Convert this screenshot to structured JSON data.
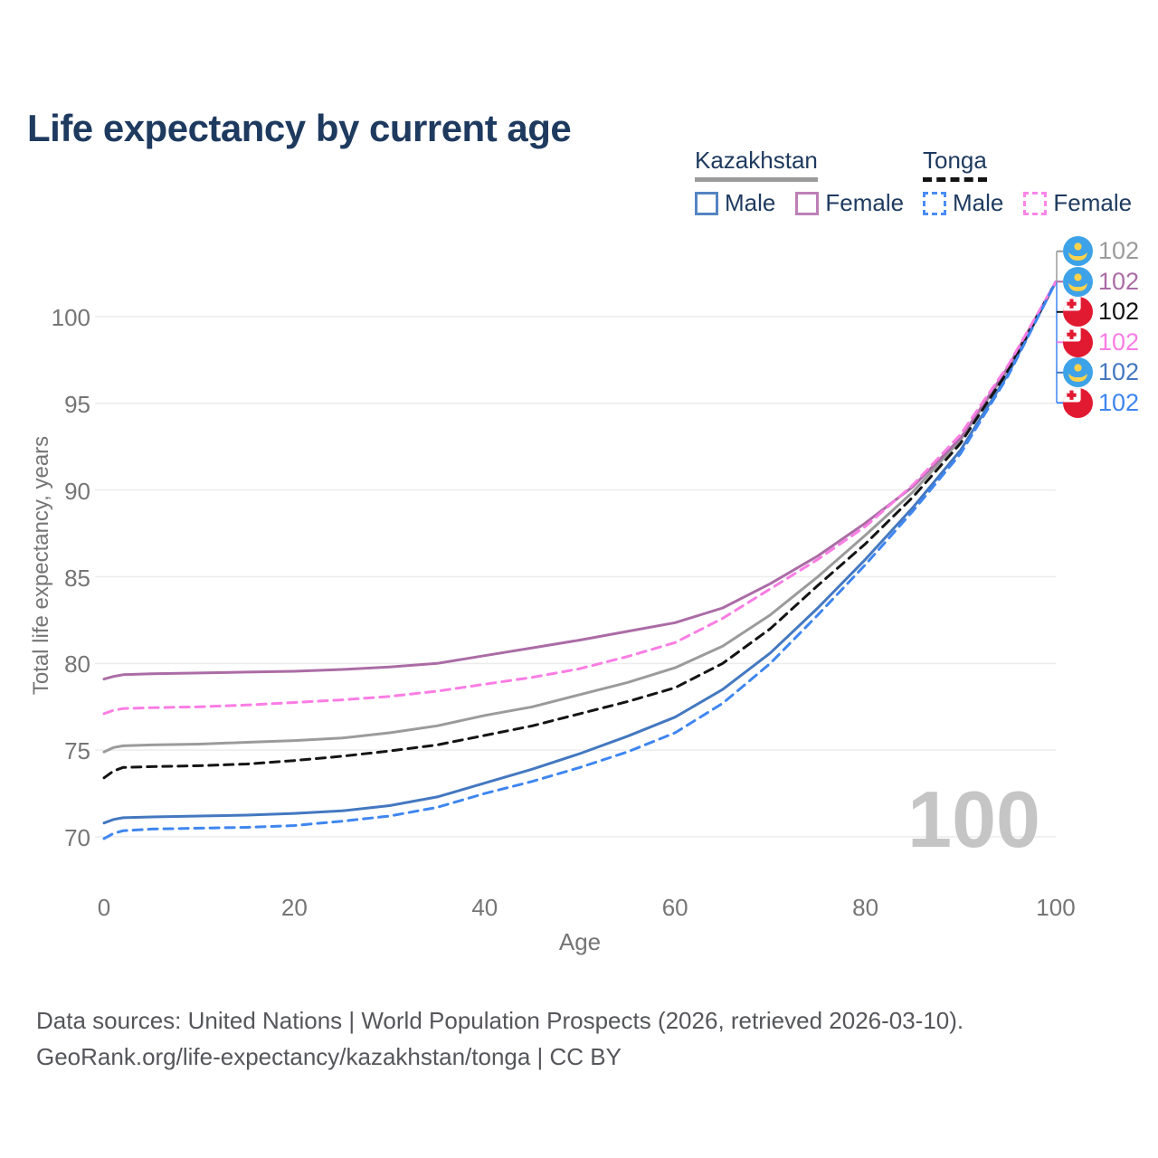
{
  "title": "Life expectancy by current age",
  "legend": {
    "groups": [
      {
        "name": "Kazakhstan",
        "line_style": "solid",
        "underline_color": "#9b9b9b",
        "items": [
          {
            "label": "Male",
            "swatch_color": "#5585c2"
          },
          {
            "label": "Female",
            "swatch_color": "#bd7fb7"
          }
        ]
      },
      {
        "name": "Tonga",
        "line_style": "dashed",
        "underline_color": "#141414",
        "items": [
          {
            "label": "Male",
            "swatch_color": "#4a8cf7"
          },
          {
            "label": "Female",
            "swatch_color": "#fb85e9"
          }
        ]
      }
    ]
  },
  "chart_data": {
    "type": "line",
    "title": "Life expectancy by current age",
    "xlabel": "Age",
    "ylabel": "Total life expectancy, years",
    "xlim": [
      0,
      100
    ],
    "ylim": [
      68.5,
      103
    ],
    "xticks": [
      0,
      20,
      40,
      60,
      80,
      100
    ],
    "yticks": [
      70,
      75,
      80,
      85,
      90,
      95,
      100
    ],
    "grid": "horizontal",
    "legend_position": "top-right",
    "x": [
      0,
      1,
      2,
      5,
      10,
      15,
      20,
      25,
      30,
      35,
      40,
      45,
      50,
      55,
      60,
      65,
      70,
      75,
      80,
      85,
      90,
      95,
      100
    ],
    "series": [
      {
        "name": "Kazakhstan All",
        "country": "Kazakhstan",
        "sex": "all",
        "color": "#9b9b9b",
        "dash": "solid",
        "values": [
          74.9,
          75.15,
          75.25,
          75.3,
          75.35,
          75.45,
          75.55,
          75.7,
          76.0,
          76.4,
          77.0,
          77.5,
          78.2,
          78.9,
          79.75,
          81.0,
          82.8,
          85.0,
          87.4,
          89.9,
          92.9,
          97.0,
          102
        ]
      },
      {
        "name": "Kazakhstan Female",
        "country": "Kazakhstan",
        "sex": "female",
        "color": "#ab6ca6",
        "dash": "solid",
        "values": [
          79.1,
          79.25,
          79.35,
          79.4,
          79.45,
          79.5,
          79.55,
          79.65,
          79.8,
          80.0,
          80.45,
          80.9,
          81.35,
          81.85,
          82.35,
          83.2,
          84.6,
          86.2,
          88.1,
          90.2,
          93.0,
          97.1,
          102
        ]
      },
      {
        "name": "Kazakhstan Male",
        "country": "Kazakhstan",
        "sex": "male",
        "color": "#4478c0",
        "dash": "solid",
        "values": [
          70.8,
          71.0,
          71.1,
          71.15,
          71.2,
          71.25,
          71.35,
          71.5,
          71.8,
          72.3,
          73.1,
          73.9,
          74.8,
          75.8,
          76.9,
          78.5,
          80.6,
          83.2,
          86.0,
          89.0,
          92.3,
          96.7,
          102
        ]
      },
      {
        "name": "Tonga All",
        "country": "Tonga",
        "sex": "all",
        "color": "#141414",
        "dash": "dashed",
        "values": [
          73.4,
          73.8,
          74.0,
          74.05,
          74.1,
          74.2,
          74.4,
          74.65,
          74.95,
          75.3,
          75.85,
          76.4,
          77.1,
          77.8,
          78.6,
          80.0,
          82.0,
          84.5,
          86.9,
          89.6,
          92.7,
          96.9,
          102
        ]
      },
      {
        "name": "Tonga Female",
        "country": "Tonga",
        "sex": "female",
        "color": "#fa7de4",
        "dash": "dashed",
        "values": [
          77.1,
          77.3,
          77.4,
          77.45,
          77.5,
          77.6,
          77.75,
          77.9,
          78.1,
          78.4,
          78.8,
          79.2,
          79.7,
          80.4,
          81.2,
          82.6,
          84.3,
          86.0,
          87.9,
          90.3,
          93.2,
          97.2,
          102
        ]
      },
      {
        "name": "Tonga Male",
        "country": "Tonga",
        "sex": "male",
        "color": "#3f86f0",
        "dash": "dashed",
        "values": [
          69.9,
          70.2,
          70.35,
          70.45,
          70.5,
          70.55,
          70.65,
          70.9,
          71.2,
          71.7,
          72.5,
          73.2,
          74.0,
          74.9,
          76.0,
          77.7,
          80.0,
          82.8,
          85.7,
          88.8,
          92.1,
          96.6,
          102
        ]
      }
    ]
  },
  "right_labels": [
    {
      "country": "Kazakhstan",
      "series": "All",
      "value": "102",
      "color": "#9b9b9b"
    },
    {
      "country": "Kazakhstan",
      "series": "Female",
      "value": "102",
      "color": "#ab6ca6"
    },
    {
      "country": "Tonga",
      "series": "All",
      "value": "102",
      "color": "#141414"
    },
    {
      "country": "Tonga",
      "series": "Female",
      "value": "102",
      "color": "#fa7de4"
    },
    {
      "country": "Kazakhstan",
      "series": "Male",
      "value": "102",
      "color": "#4478c0"
    },
    {
      "country": "Tonga",
      "series": "Male",
      "value": "102",
      "color": "#3f86f0"
    }
  ],
  "watermark_age": "100",
  "footer": {
    "line1": "Data sources: United Nations | World Population Prospects (2026, retrieved 2026-03-10).",
    "line2": "GeoRank.org/life-expectancy/kazakhstan/tonga | CC BY"
  },
  "colors": {
    "title_text": "#1e3a5f",
    "axis_text": "#757575",
    "grid": "#ececec",
    "watermark": "#c5c5c5",
    "footer_text": "#55565a",
    "kazakhstan_flag_blue": "#3da2e8",
    "kazakhstan_flag_yellow": "#fdd24c",
    "tonga_flag_red": "#e11931"
  }
}
